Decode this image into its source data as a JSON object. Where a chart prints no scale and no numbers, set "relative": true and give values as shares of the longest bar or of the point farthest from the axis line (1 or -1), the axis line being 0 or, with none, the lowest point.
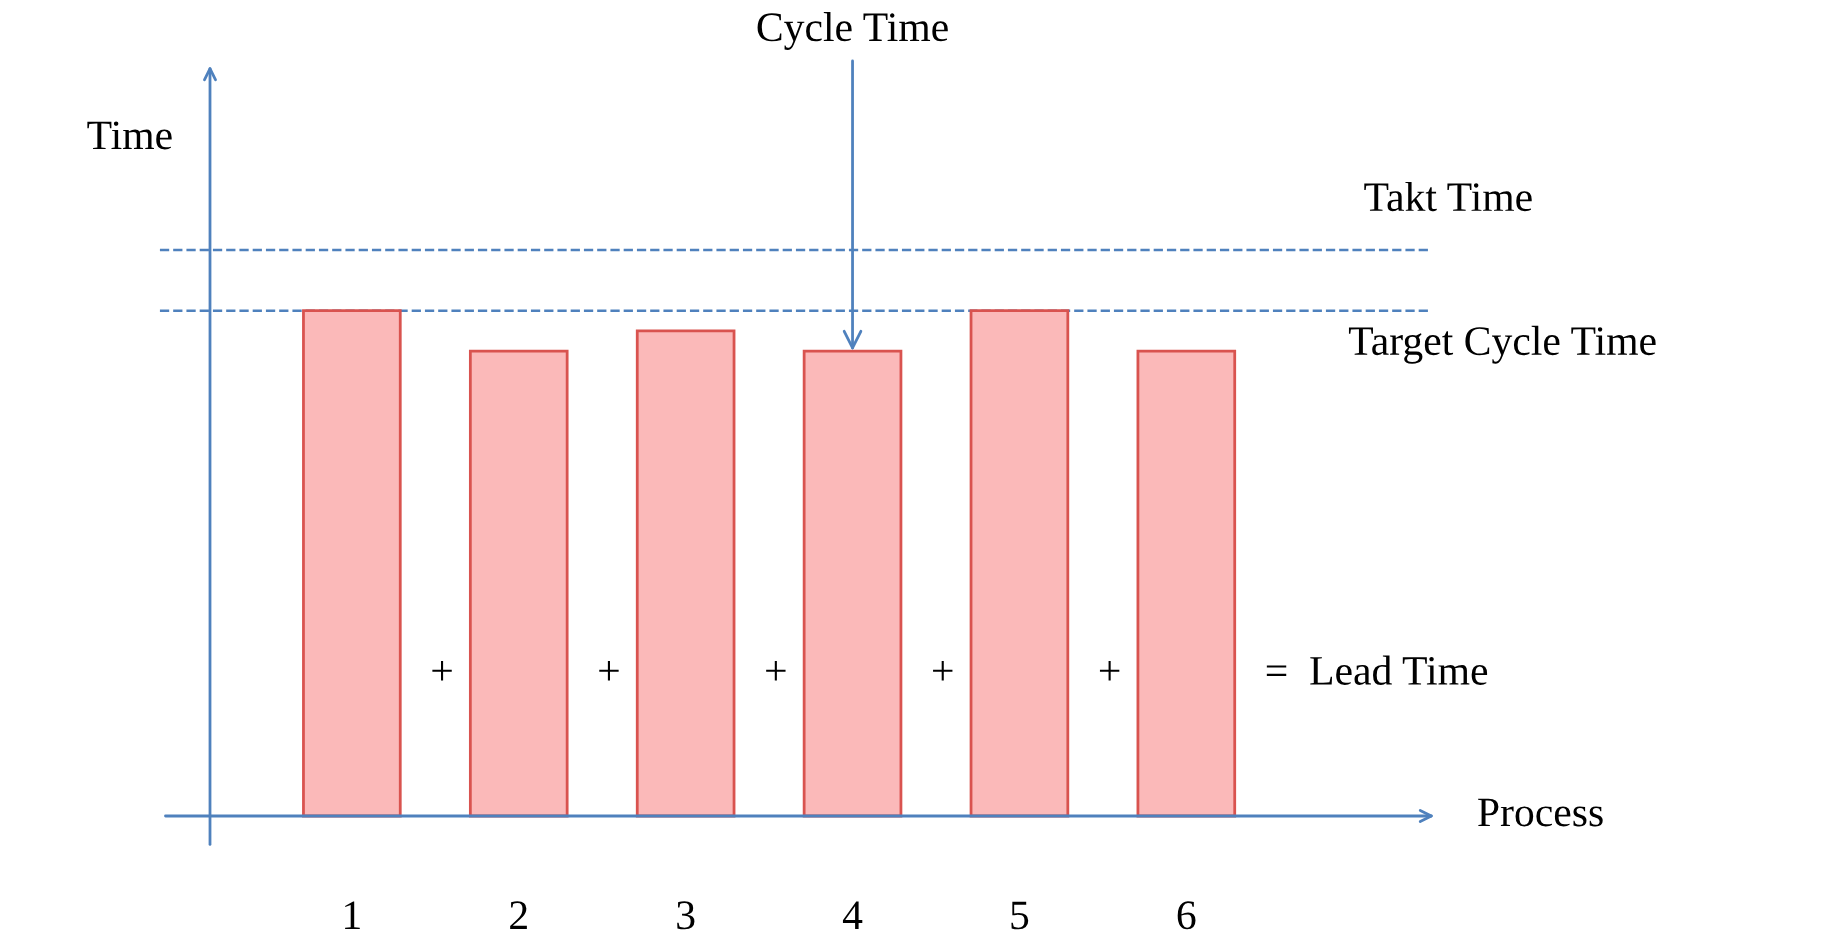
{
  "chart_data": {
    "type": "bar",
    "relative": true,
    "ylabel": "Time",
    "xlabel": "Process",
    "categories": [
      "1",
      "2",
      "3",
      "4",
      "5",
      "6"
    ],
    "values": [
      1,
      0.92,
      0.96,
      0.92,
      1,
      0.92
    ],
    "color": "#fbb9b9",
    "ref_lines": [
      {
        "axis": "y",
        "value": 1.12,
        "label": "Takt Time",
        "color": "#4f81bd",
        "line_style": "dashed"
      },
      {
        "axis": "y",
        "value": 1,
        "label": "Target Cycle Time",
        "color": "#4f81bd",
        "line_style": "dashed"
      }
    ],
    "annotations": [
      {
        "text": "Cycle Time",
        "x": "4",
        "y": 0.92
      },
      "+",
      "+",
      "+",
      "+",
      "+",
      "=  Lead Time"
    ],
    "grid": false
  }
}
